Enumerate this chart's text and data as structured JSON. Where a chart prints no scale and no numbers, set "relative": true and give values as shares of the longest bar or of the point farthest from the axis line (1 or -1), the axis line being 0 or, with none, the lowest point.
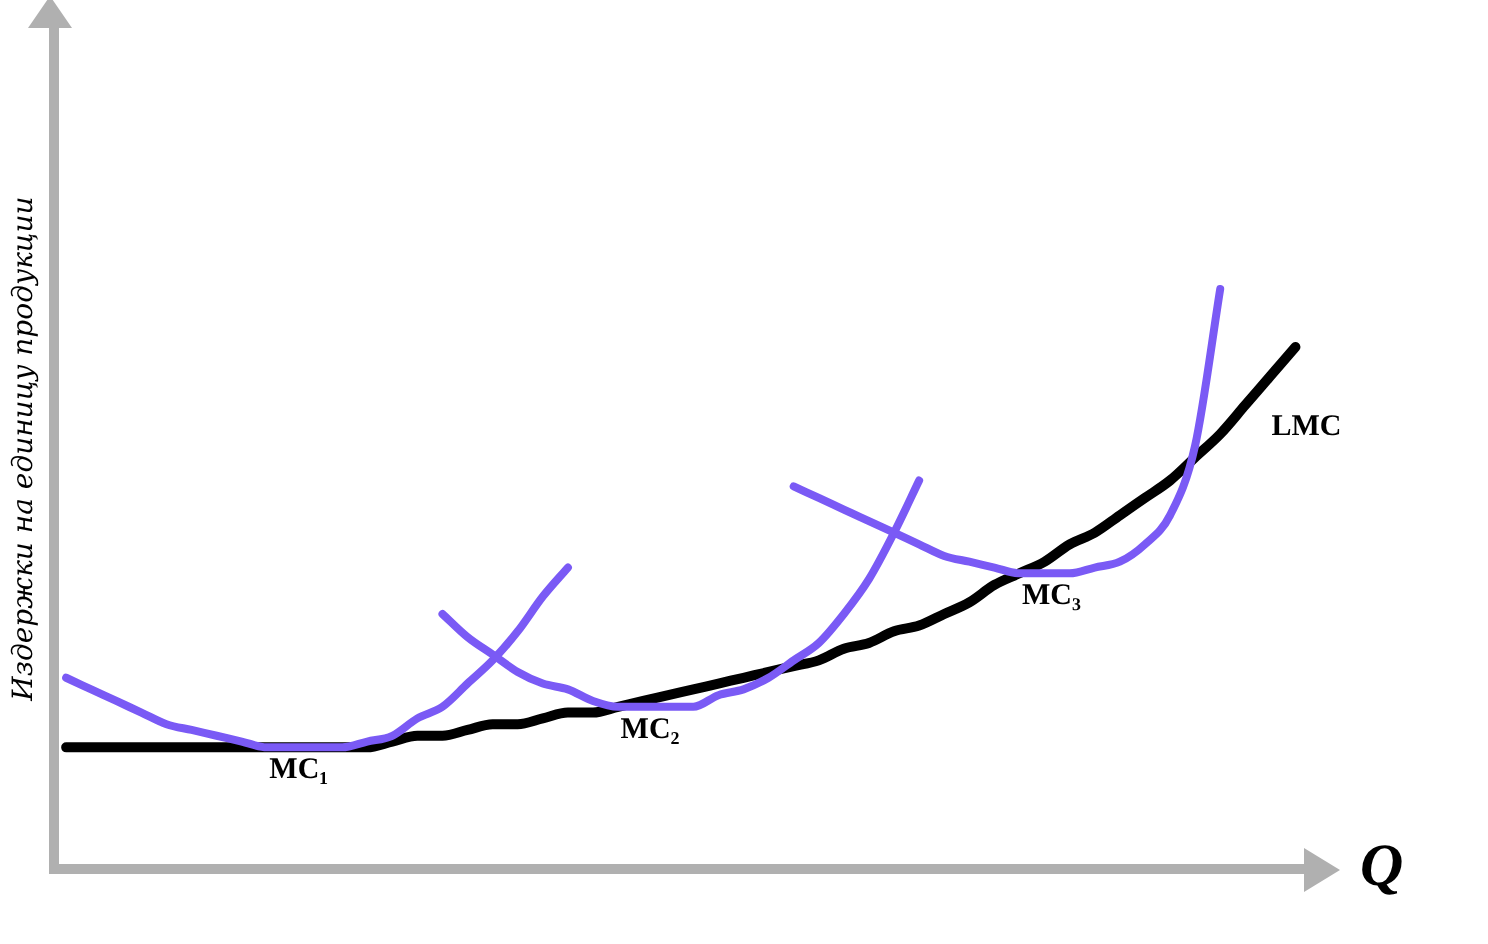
{
  "chart_data": {
    "type": "line",
    "relative": true,
    "xlabel": "Q",
    "ylabel": "Издержки на единицу продукции",
    "grid": false,
    "legend": false,
    "marker": "none",
    "line_style": "solid",
    "categories": [
      null,
      null,
      null,
      null,
      null,
      null,
      null,
      null,
      null,
      null,
      null,
      null,
      null,
      null,
      null,
      null,
      null,
      null,
      null,
      null,
      null,
      null,
      null,
      null,
      null,
      null,
      null,
      null,
      null,
      null,
      null,
      null,
      null,
      null,
      null,
      null,
      null,
      null,
      null,
      null,
      null,
      null,
      null,
      null,
      null,
      null,
      null,
      null,
      null,
      null
    ],
    "series": [
      {
        "name": "LMC",
        "color": "#000000",
        "values": [
          0.21,
          0.21,
          0.21,
          0.21,
          0.21,
          0.21,
          0.21,
          0.21,
          0.21,
          0.21,
          0.21,
          0.21,
          0.21,
          0.22,
          0.23,
          0.23,
          0.24,
          0.25,
          0.25,
          0.26,
          0.27,
          0.27,
          0.28,
          0.29,
          0.3,
          0.31,
          0.32,
          0.33,
          0.34,
          0.35,
          0.36,
          0.38,
          0.39,
          0.41,
          0.42,
          0.44,
          0.46,
          0.49,
          0.51,
          0.53,
          0.56,
          0.58,
          0.61,
          0.64,
          0.67,
          0.71,
          0.75,
          0.8,
          0.85,
          0.9
        ]
      },
      {
        "name": "MC₁",
        "color": "#7a5af5",
        "values": [
          0.33,
          0.31,
          0.29,
          0.27,
          0.25,
          0.24,
          0.23,
          0.22,
          0.21,
          0.21,
          0.21,
          0.21,
          0.22,
          0.23,
          0.26,
          0.28,
          0.32,
          0.36,
          0.41,
          0.47,
          0.52,
          null,
          null,
          null,
          null,
          null,
          null,
          null,
          null,
          null,
          null,
          null,
          null,
          null,
          null,
          null,
          null,
          null,
          null,
          null,
          null,
          null,
          null,
          null,
          null,
          null,
          null,
          null,
          null,
          null
        ]
      },
      {
        "name": "MC₂",
        "color": "#7a5af5",
        "values": [
          null,
          null,
          null,
          null,
          null,
          null,
          null,
          null,
          null,
          null,
          null,
          null,
          null,
          null,
          null,
          0.44,
          0.4,
          0.37,
          0.34,
          0.32,
          0.31,
          0.29,
          0.28,
          0.28,
          0.28,
          0.28,
          0.3,
          0.31,
          0.33,
          0.36,
          0.39,
          0.44,
          0.5,
          0.58,
          0.67,
          null,
          null,
          null,
          null,
          null,
          null,
          null,
          null,
          null,
          null,
          null,
          null,
          null,
          null,
          null
        ]
      },
      {
        "name": "MC₃",
        "color": "#7a5af5",
        "values": [
          null,
          null,
          null,
          null,
          null,
          null,
          null,
          null,
          null,
          null,
          null,
          null,
          null,
          null,
          null,
          null,
          null,
          null,
          null,
          null,
          null,
          null,
          null,
          null,
          null,
          null,
          null,
          null,
          null,
          0.66,
          0.64,
          0.62,
          0.6,
          0.58,
          0.56,
          0.54,
          0.53,
          0.52,
          0.51,
          0.51,
          0.51,
          0.52,
          0.53,
          0.56,
          0.61,
          0.73,
          1,
          null,
          null,
          null
        ]
      }
    ]
  }
}
